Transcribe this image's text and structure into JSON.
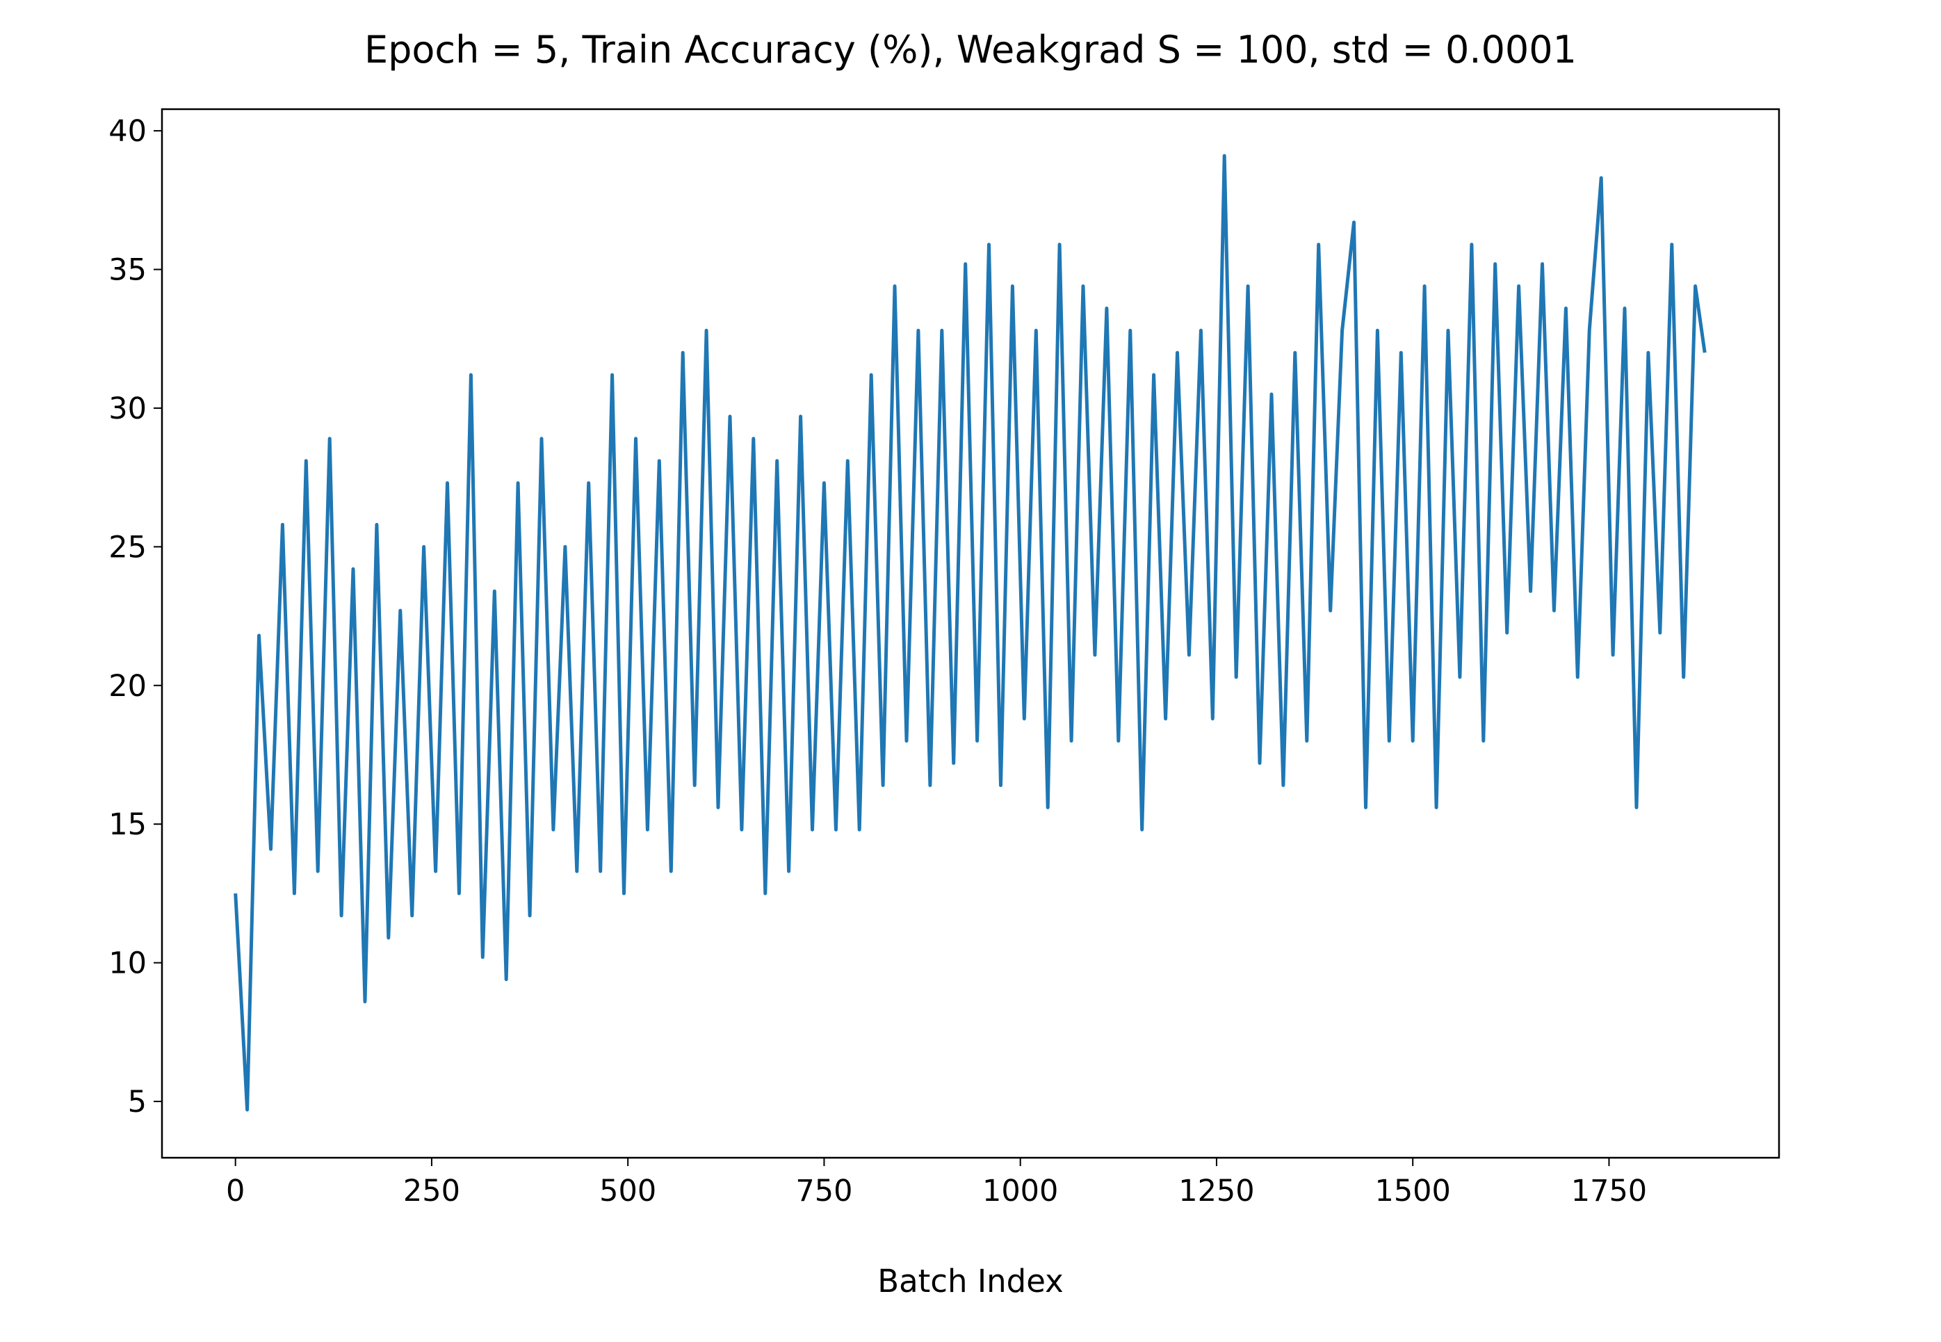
{
  "chart_data": {
    "type": "line",
    "title": "Epoch = 5, Train Accuracy (%), Weakgrad S = 100, std = 0.0001",
    "xlabel": "Batch Index",
    "x": [
      0,
      15,
      30,
      45,
      60,
      75,
      90,
      105,
      120,
      135,
      150,
      165,
      180,
      195,
      210,
      225,
      240,
      255,
      270,
      285,
      300,
      315,
      330,
      345,
      360,
      375,
      390,
      405,
      420,
      435,
      450,
      465,
      480,
      495,
      510,
      525,
      540,
      555,
      570,
      585,
      600,
      615,
      630,
      645,
      660,
      675,
      690,
      705,
      720,
      735,
      750,
      765,
      780,
      795,
      810,
      825,
      840,
      855,
      870,
      885,
      900,
      915,
      930,
      945,
      960,
      975,
      990,
      1005,
      1020,
      1035,
      1050,
      1065,
      1080,
      1095,
      1110,
      1125,
      1140,
      1155,
      1170,
      1185,
      1200,
      1215,
      1230,
      1245,
      1260,
      1275,
      1290,
      1305,
      1320,
      1335,
      1350,
      1365,
      1380,
      1395,
      1410,
      1425,
      1440,
      1455,
      1470,
      1485,
      1500,
      1515,
      1530,
      1545,
      1560,
      1575,
      1590,
      1605,
      1620,
      1635,
      1650,
      1665,
      1680,
      1695,
      1710,
      1725,
      1740,
      1755,
      1770,
      1785,
      1800,
      1815,
      1830,
      1845,
      1860,
      1872
    ],
    "series": [
      {
        "name": "Train Accuracy",
        "color": "#1f77b4",
        "values": [
          12.5,
          4.7,
          21.8,
          14.1,
          25.8,
          12.5,
          28.1,
          13.3,
          28.9,
          11.7,
          24.2,
          8.6,
          25.8,
          10.9,
          22.7,
          11.7,
          25.0,
          13.3,
          27.3,
          12.5,
          31.2,
          10.2,
          23.4,
          9.4,
          27.3,
          11.7,
          28.9,
          14.8,
          25.0,
          13.3,
          27.3,
          13.3,
          31.2,
          12.5,
          28.9,
          14.8,
          28.1,
          13.3,
          32.0,
          16.4,
          32.8,
          15.6,
          29.7,
          14.8,
          28.9,
          12.5,
          28.1,
          13.3,
          29.7,
          14.8,
          27.3,
          14.8,
          28.1,
          14.8,
          31.2,
          16.4,
          34.4,
          18.0,
          32.8,
          16.4,
          32.8,
          17.2,
          35.2,
          18.0,
          35.9,
          16.4,
          34.4,
          18.8,
          32.8,
          15.6,
          35.9,
          18.0,
          34.4,
          21.1,
          33.6,
          18.0,
          32.8,
          14.8,
          31.2,
          18.8,
          32.0,
          21.1,
          32.8,
          18.8,
          39.1,
          20.3,
          34.4,
          17.2,
          30.5,
          16.4,
          32.0,
          18.0,
          35.9,
          22.7,
          32.8,
          36.7,
          15.6,
          32.8,
          18.0,
          32.0,
          18.0,
          34.4,
          15.6,
          32.8,
          20.3,
          35.9,
          18.0,
          35.2,
          21.9,
          34.4,
          23.4,
          35.2,
          22.7,
          33.6,
          20.3,
          32.8,
          38.3,
          21.1,
          33.6,
          15.6,
          32.0,
          21.9,
          35.9,
          20.3,
          34.4,
          32.0
        ]
      }
    ],
    "xlim": [
      -93.6,
      1966.6
    ],
    "ylim": [
      2.97,
      40.78
    ],
    "xticks": [
      0,
      250,
      500,
      750,
      1000,
      1250,
      1500,
      1750
    ],
    "yticks": [
      5,
      10,
      15,
      20,
      25,
      30,
      35,
      40
    ]
  }
}
